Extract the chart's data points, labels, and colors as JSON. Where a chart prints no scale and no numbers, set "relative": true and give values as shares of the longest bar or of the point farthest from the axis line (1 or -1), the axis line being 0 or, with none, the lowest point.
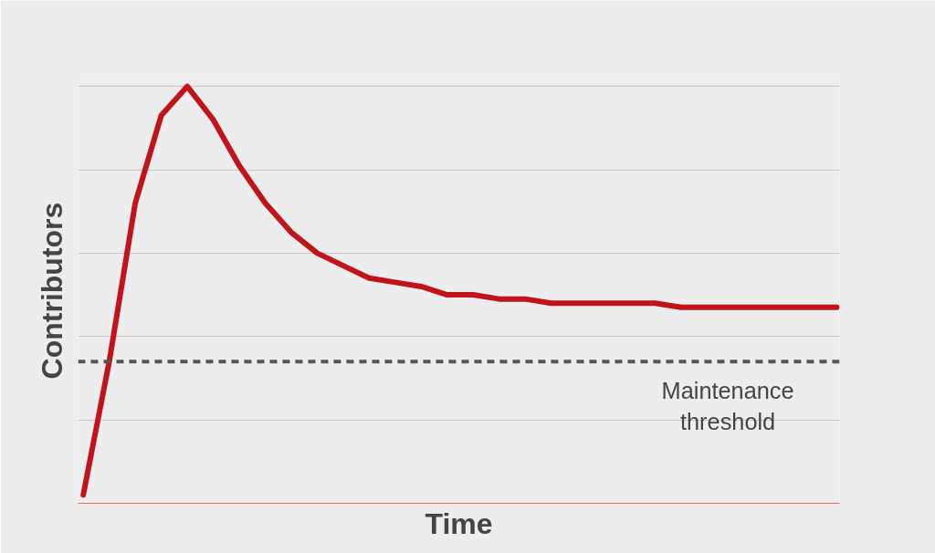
{
  "chart_data": {
    "type": "line",
    "relative": true,
    "xlabel": "Time",
    "ylabel": "Contributors",
    "categories": [
      null,
      null,
      null,
      null,
      null,
      null,
      null,
      null,
      null,
      null,
      null,
      null,
      null,
      null,
      null,
      null,
      null,
      null,
      null,
      null,
      null,
      null,
      null,
      null,
      null,
      null,
      null,
      null,
      null,
      null
    ],
    "series": [
      {
        "color": "#c0141a",
        "values": [
          0.02,
          0.34,
          0.72,
          0.93,
          1.0,
          0.92,
          0.81,
          0.72,
          0.65,
          0.6,
          0.57,
          0.54,
          0.53,
          0.52,
          0.5,
          0.5,
          0.49,
          0.49,
          0.48,
          0.48,
          0.48,
          0.48,
          0.48,
          0.47,
          0.47,
          0.47,
          0.47,
          0.47,
          0.47,
          0.47
        ]
      }
    ],
    "grid": "y",
    "marker": "none",
    "line_style": "solid",
    "ref_lines": [
      {
        "axis": "y",
        "value": 0.34,
        "label": "Maintenance threshold",
        "color": "#555555",
        "line_style": "dashed"
      }
    ]
  }
}
